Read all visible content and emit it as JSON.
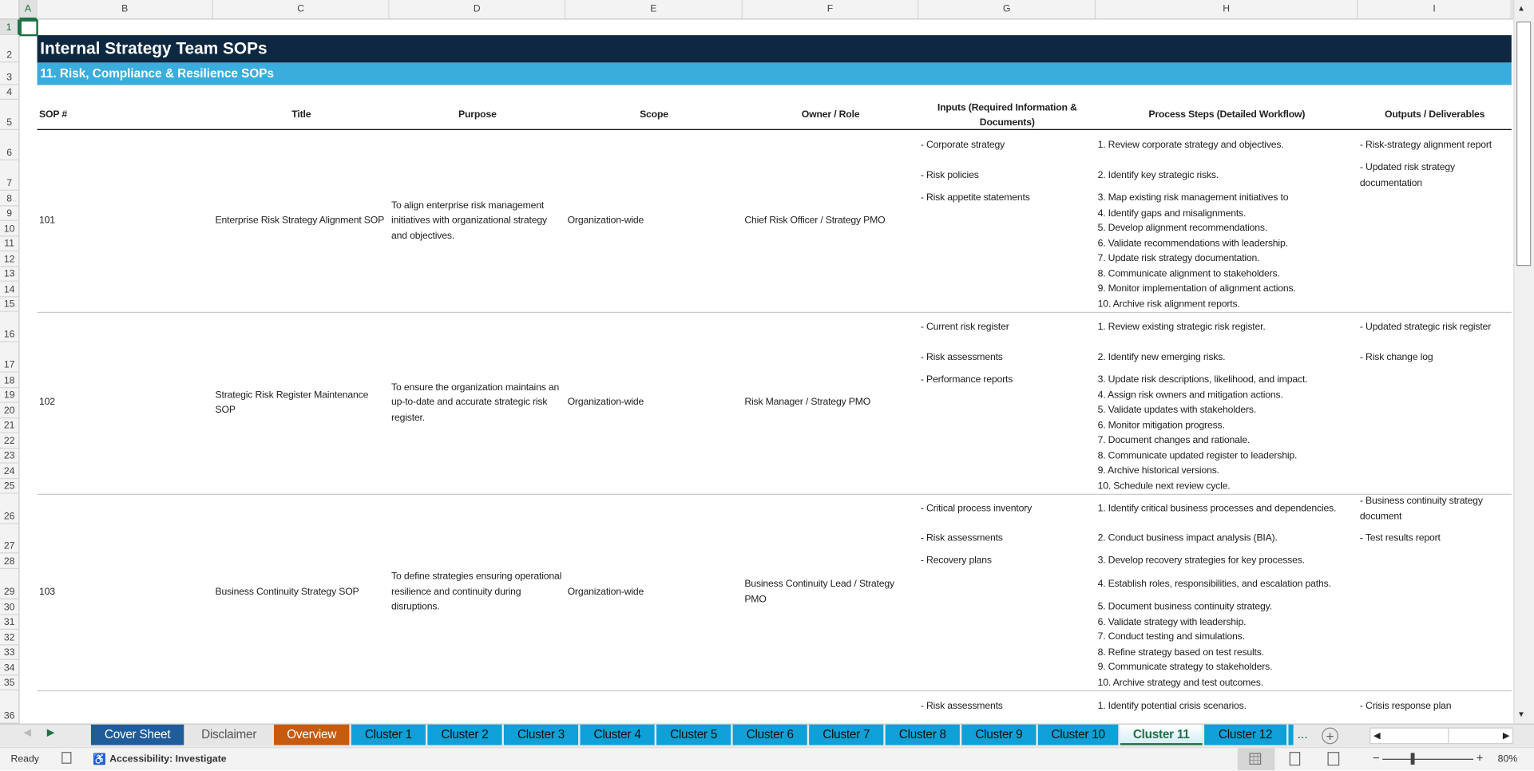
{
  "sheet": {
    "columns": [
      "A",
      "B",
      "C",
      "D",
      "E",
      "F",
      "G",
      "H",
      "I"
    ],
    "title": "Internal Strategy Team SOPs",
    "subtitle": "11. Risk, Compliance & Resilience SOPs",
    "title_bg": "#0e2841",
    "subtitle_bg": "#3aaddc",
    "headers": [
      "SOP #",
      "Title",
      "Purpose",
      "Scope",
      "Owner / Role",
      "Inputs (Required Information & Documents)",
      "Process Steps (Detailed Workflow)",
      "Outputs / Deliverables"
    ],
    "sops": [
      {
        "number": "101",
        "title": "Enterprise Risk Strategy Alignment SOP",
        "purpose": "To align enterprise risk management initiatives with organizational strategy and objectives.",
        "scope": "Organization-wide",
        "owner": "Chief Risk Officer / Strategy PMO",
        "inputs": [
          "- Corporate strategy",
          "- Risk policies",
          "- Risk appetite statements"
        ],
        "steps": [
          "1. Review corporate strategy and objectives.",
          "2. Identify key strategic risks.",
          "3. Map existing risk management initiatives to",
          "4. Identify gaps and misalignments.",
          "5. Develop alignment recommendations.",
          "6. Validate recommendations with leadership.",
          "7. Update risk strategy documentation.",
          "8. Communicate alignment to stakeholders.",
          "9. Monitor implementation of alignment actions.",
          "10. Archive risk alignment reports."
        ],
        "outputs": [
          "- Risk-strategy alignment report",
          "- Updated risk strategy documentation"
        ]
      },
      {
        "number": "102",
        "title": "Strategic Risk Register Maintenance SOP",
        "purpose": "To ensure the organization maintains an up-to-date and accurate strategic risk register.",
        "scope": "Organization-wide",
        "owner": "Risk Manager / Strategy PMO",
        "inputs": [
          "- Current risk register",
          "- Risk assessments",
          "- Performance reports"
        ],
        "steps": [
          "1. Review existing strategic risk register.",
          "2. Identify new emerging risks.",
          "3. Update risk descriptions, likelihood, and impact.",
          "4. Assign risk owners and mitigation actions.",
          "5. Validate updates with stakeholders.",
          "6. Monitor mitigation progress.",
          "7. Document changes and rationale.",
          "8. Communicate updated register to leadership.",
          "9. Archive historical versions.",
          "10. Schedule next review cycle."
        ],
        "outputs": [
          "- Updated strategic risk register",
          "- Risk change log"
        ]
      },
      {
        "number": "103",
        "title": "Business Continuity Strategy SOP",
        "purpose": "To define strategies ensuring operational resilience and continuity during disruptions.",
        "scope": "Organization-wide",
        "owner": "Business Continuity Lead / Strategy PMO",
        "inputs": [
          "- Critical process inventory",
          "- Risk assessments",
          "- Recovery plans"
        ],
        "steps": [
          "1. Identify critical business processes and dependencies.",
          "2. Conduct business impact analysis (BIA).",
          "3. Develop recovery strategies for key processes.",
          "4. Establish roles, responsibilities, and escalation paths.",
          "5. Document business continuity strategy.",
          "6. Validate strategy with leadership.",
          "7. Conduct testing and simulations.",
          "8. Refine strategy based on test results.",
          "9. Communicate strategy to stakeholders.",
          "10. Archive strategy and test outcomes."
        ],
        "outputs": [
          "- Business continuity strategy document",
          "- Test results report"
        ]
      },
      {
        "number": "",
        "title": "",
        "purpose": "",
        "scope": "",
        "owner": "",
        "inputs": [
          "- Risk assessments"
        ],
        "steps": [
          "1. Identify potential crisis scenarios."
        ],
        "outputs": [
          "- Crisis response plan"
        ]
      }
    ]
  },
  "tabs": {
    "items": [
      {
        "label": "Cover Sheet",
        "color": "#1f5c99",
        "text": "#ffffff"
      },
      {
        "label": "Disclaimer",
        "color": "#e6e6e6",
        "text": "#555555"
      },
      {
        "label": "Overview",
        "color": "#c55a11",
        "text": "#ffffff"
      },
      {
        "label": "Cluster 1",
        "color": "#0ea0d6",
        "text": "#111111"
      },
      {
        "label": "Cluster 2",
        "color": "#0ea0d6",
        "text": "#111111"
      },
      {
        "label": "Cluster 3",
        "color": "#0ea0d6",
        "text": "#111111"
      },
      {
        "label": "Cluster 4",
        "color": "#0ea0d6",
        "text": "#111111"
      },
      {
        "label": "Cluster 5",
        "color": "#0ea0d6",
        "text": "#111111"
      },
      {
        "label": "Cluster 6",
        "color": "#0ea0d6",
        "text": "#111111"
      },
      {
        "label": "Cluster 7",
        "color": "#0ea0d6",
        "text": "#111111"
      },
      {
        "label": "Cluster 8",
        "color": "#0ea0d6",
        "text": "#111111"
      },
      {
        "label": "Cluster 9",
        "color": "#0ea0d6",
        "text": "#111111"
      },
      {
        "label": "Cluster 10",
        "color": "#0ea0d6",
        "text": "#111111"
      },
      {
        "label": "Cluster 11",
        "color": "active",
        "text": "#1e7145"
      },
      {
        "label": "Cluster 12",
        "color": "#0ea0d6",
        "text": "#111111"
      }
    ],
    "active": "Cluster 11",
    "more": "..."
  },
  "status": {
    "ready": "Ready",
    "accessibility": "Accessibility: Investigate",
    "zoom": "80%",
    "zoom_percent": 80
  }
}
